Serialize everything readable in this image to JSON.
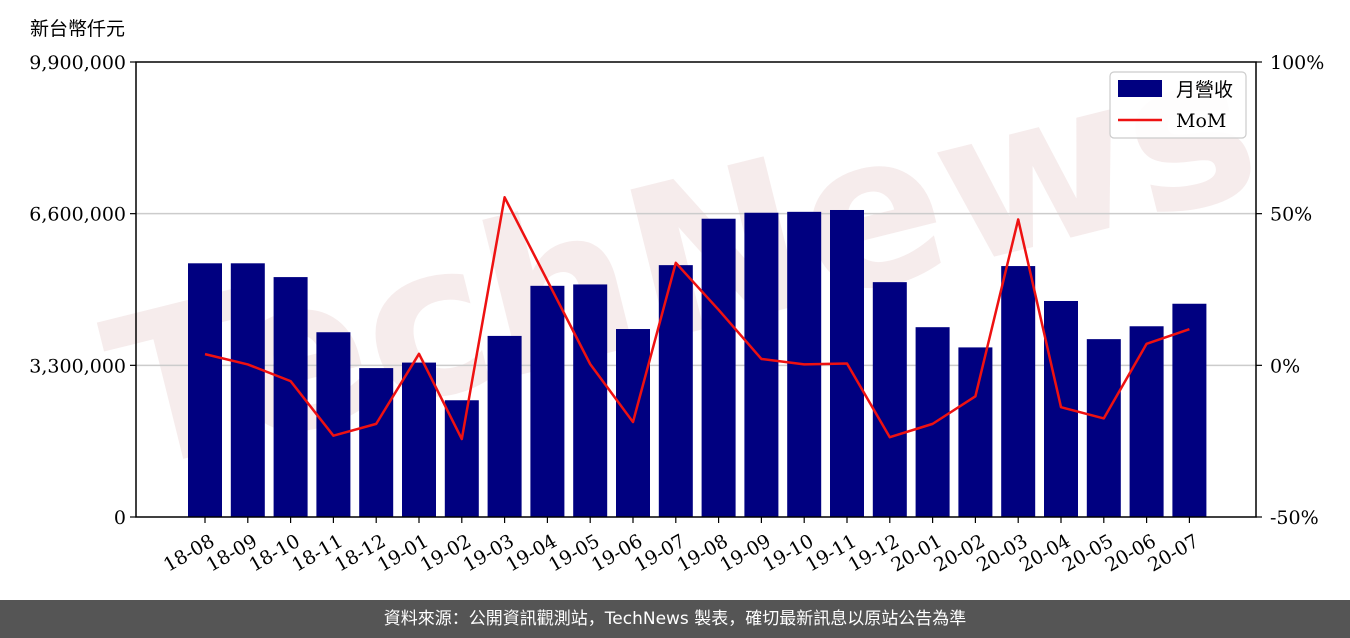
{
  "chart_data": {
    "type": "bar",
    "unit_label": "新台幣仟元",
    "categories": [
      "18-08",
      "18-09",
      "18-10",
      "18-11",
      "18-12",
      "19-01",
      "19-02",
      "19-03",
      "19-04",
      "19-05",
      "19-06",
      "19-07",
      "19-08",
      "19-09",
      "19-10",
      "19-11",
      "19-12",
      "20-01",
      "20-02",
      "20-03",
      "20-04",
      "20-05",
      "20-06",
      "20-07"
    ],
    "series": [
      {
        "name": "月營收",
        "kind": "bar",
        "axis": "left",
        "color": "#000080",
        "values": [
          5520000,
          5520000,
          5220000,
          4020000,
          3240000,
          3360000,
          2540000,
          3940000,
          5030000,
          5060000,
          4090000,
          5480000,
          6490000,
          6620000,
          6640000,
          6680000,
          5110000,
          4130000,
          3690000,
          5460000,
          4700000,
          3870000,
          4150000,
          4640000
        ]
      },
      {
        "name": "MoM",
        "kind": "line",
        "axis": "right",
        "color": "#ee1111",
        "values": [
          3.7,
          0.3,
          -5.2,
          -23.2,
          -19.3,
          3.8,
          -24.3,
          55.4,
          27.9,
          0.4,
          -18.7,
          33.8,
          18.3,
          2.1,
          0.3,
          0.6,
          -23.7,
          -19.3,
          -10.2,
          48.1,
          -13.8,
          -17.5,
          7.1,
          11.9
        ]
      }
    ],
    "ylim": [
      0,
      9900000
    ],
    "yticks": [
      "0",
      "3,300,000",
      "6,600,000",
      "9,900,000"
    ],
    "y2lim": [
      -50,
      100
    ],
    "y2ticks": [
      "-50%",
      "0%",
      "50%",
      "100%"
    ],
    "grid": "horizontal",
    "legend_position": "top-right"
  },
  "watermark": "TechNews",
  "footer": {
    "text": "資料來源：公開資訊觀測站，TechNews 製表，確切最新訊息以原站公告為準"
  }
}
